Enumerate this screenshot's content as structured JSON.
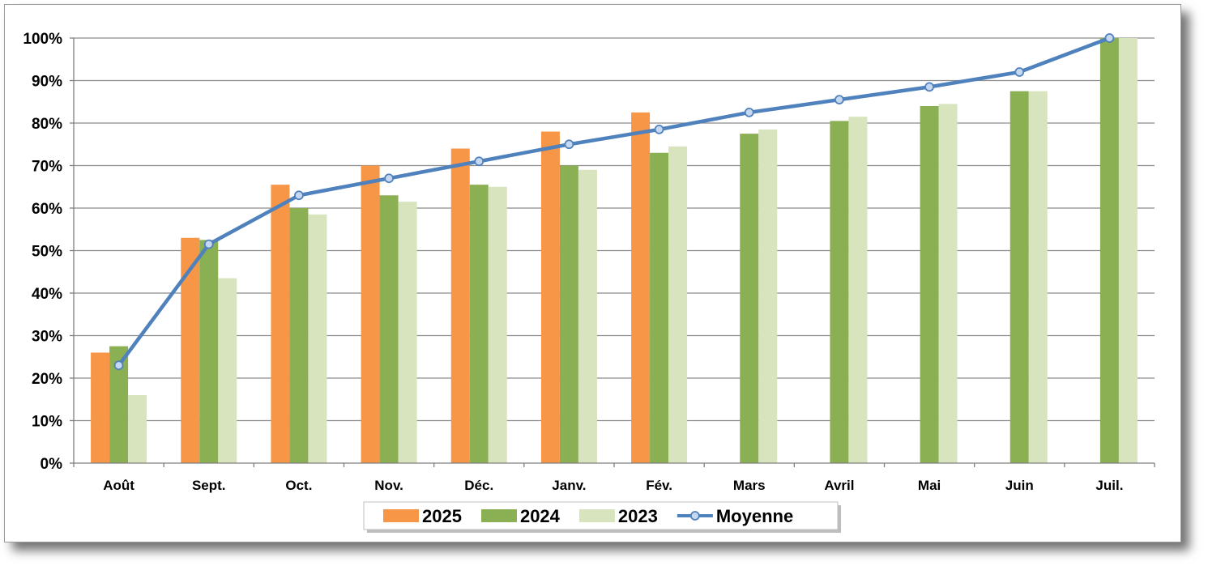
{
  "chart_data": {
    "type": "bar",
    "categories": [
      "Août",
      "Sept.",
      "Oct.",
      "Nov.",
      "Déc.",
      "Janv.",
      "Fév.",
      "Mars",
      "Avril",
      "Mai",
      "Juin",
      "Juil."
    ],
    "series": [
      {
        "name": "2025",
        "kind": "bar",
        "color": "#F79646",
        "values": [
          26,
          53,
          65.5,
          70,
          74,
          78,
          82.5,
          null,
          null,
          null,
          null,
          null
        ]
      },
      {
        "name": "2024",
        "kind": "bar",
        "color": "#8BAF53",
        "values": [
          27.5,
          52.5,
          60,
          63,
          65.5,
          70,
          73,
          77.5,
          80.5,
          84,
          87.5,
          100
        ]
      },
      {
        "name": "2023",
        "kind": "bar",
        "color": "#D7E4BD",
        "values": [
          16,
          43.5,
          58.5,
          61.5,
          65,
          69,
          74.5,
          78.5,
          81.5,
          84.5,
          87.5,
          100
        ]
      },
      {
        "name": "Moyenne",
        "kind": "line",
        "color": "#4F81BD",
        "values": [
          23,
          51.5,
          63,
          67,
          71,
          75,
          78.5,
          82.5,
          85.5,
          88.5,
          92,
          100
        ]
      }
    ],
    "y_ticks": [
      "0%",
      "10%",
      "20%",
      "30%",
      "40%",
      "50%",
      "60%",
      "70%",
      "80%",
      "90%",
      "100%"
    ],
    "ylim": [
      0,
      100
    ],
    "y_unit": "%",
    "grid": true,
    "legend_position": "bottom"
  }
}
